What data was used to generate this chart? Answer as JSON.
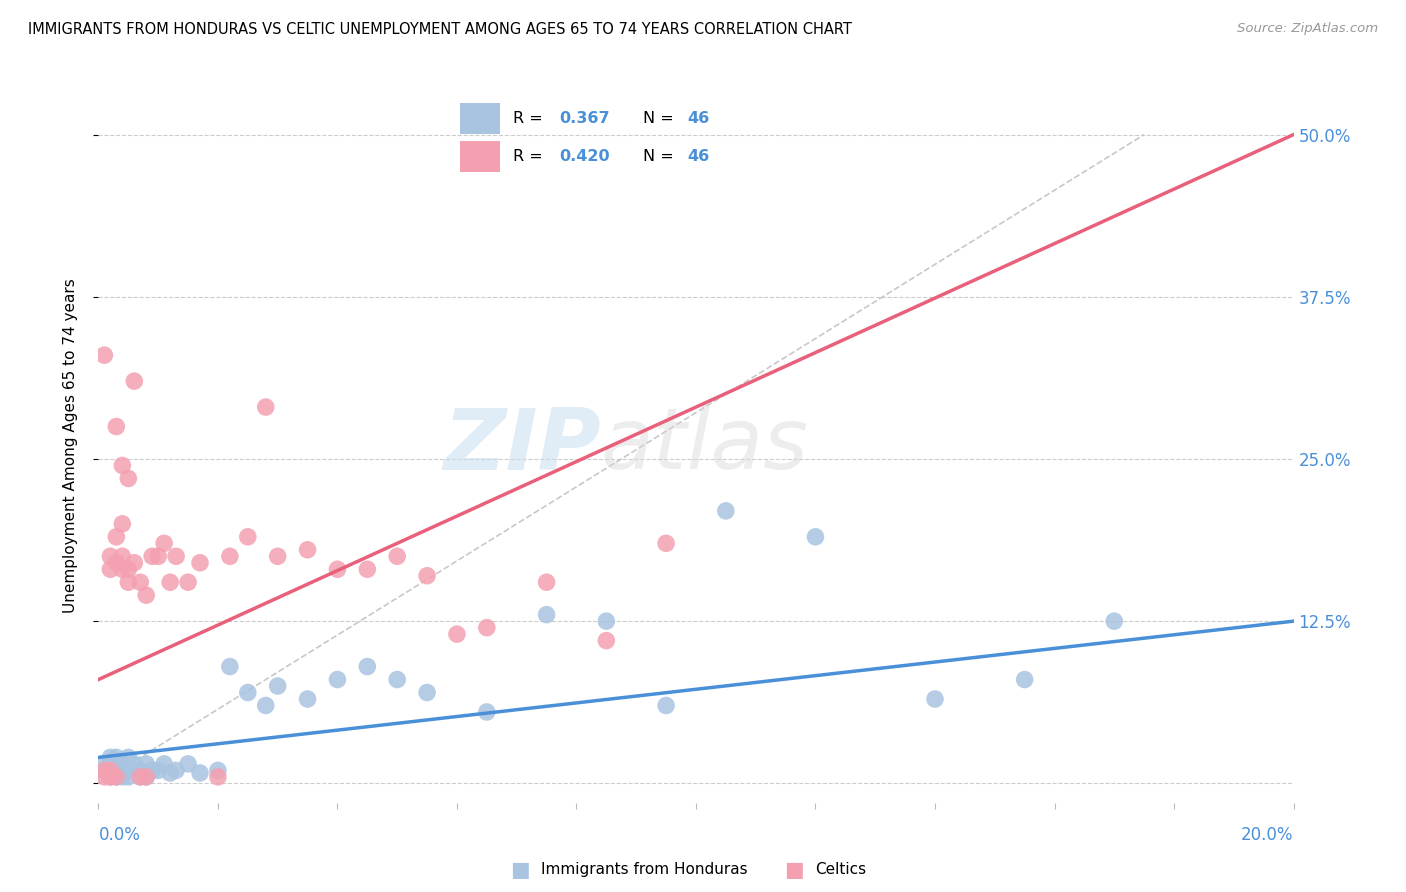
{
  "title": "IMMIGRANTS FROM HONDURAS VS CELTIC UNEMPLOYMENT AMONG AGES 65 TO 74 YEARS CORRELATION CHART",
  "source": "Source: ZipAtlas.com",
  "ylabel": "Unemployment Among Ages 65 to 74 years",
  "xlim": [
    0.0,
    0.2
  ],
  "ylim": [
    -0.015,
    0.535
  ],
  "yticks": [
    0.0,
    0.125,
    0.25,
    0.375,
    0.5
  ],
  "ytick_labels": [
    "",
    "12.5%",
    "25.0%",
    "37.5%",
    "50.0%"
  ],
  "blue_color": "#a8c4e0",
  "pink_color": "#f4a0b0",
  "blue_line_color": "#4a90d9",
  "pink_line_color": "#e8607a",
  "watermark_zip": "ZIP",
  "watermark_atlas": "atlas",
  "blue_scatter_x": [
    0.001,
    0.001,
    0.002,
    0.002,
    0.002,
    0.003,
    0.003,
    0.003,
    0.004,
    0.004,
    0.004,
    0.005,
    0.005,
    0.005,
    0.006,
    0.006,
    0.007,
    0.007,
    0.008,
    0.008,
    0.009,
    0.01,
    0.011,
    0.012,
    0.013,
    0.015,
    0.017,
    0.02,
    0.022,
    0.025,
    0.028,
    0.03,
    0.035,
    0.04,
    0.045,
    0.05,
    0.055,
    0.065,
    0.075,
    0.085,
    0.095,
    0.105,
    0.12,
    0.14,
    0.155,
    0.17
  ],
  "blue_scatter_y": [
    0.01,
    0.015,
    0.005,
    0.01,
    0.02,
    0.005,
    0.01,
    0.02,
    0.005,
    0.01,
    0.015,
    0.005,
    0.01,
    0.02,
    0.01,
    0.015,
    0.005,
    0.01,
    0.005,
    0.015,
    0.01,
    0.01,
    0.015,
    0.008,
    0.01,
    0.015,
    0.008,
    0.01,
    0.09,
    0.07,
    0.06,
    0.075,
    0.065,
    0.08,
    0.09,
    0.08,
    0.07,
    0.055,
    0.13,
    0.125,
    0.06,
    0.21,
    0.19,
    0.065,
    0.08,
    0.125
  ],
  "pink_scatter_x": [
    0.001,
    0.001,
    0.001,
    0.002,
    0.002,
    0.002,
    0.002,
    0.003,
    0.003,
    0.003,
    0.003,
    0.004,
    0.004,
    0.004,
    0.004,
    0.005,
    0.005,
    0.005,
    0.006,
    0.006,
    0.007,
    0.007,
    0.008,
    0.008,
    0.009,
    0.01,
    0.011,
    0.012,
    0.013,
    0.015,
    0.017,
    0.02,
    0.022,
    0.025,
    0.028,
    0.03,
    0.035,
    0.04,
    0.045,
    0.05,
    0.055,
    0.06,
    0.065,
    0.075,
    0.085,
    0.095
  ],
  "pink_scatter_y": [
    0.005,
    0.01,
    0.33,
    0.005,
    0.01,
    0.165,
    0.175,
    0.005,
    0.17,
    0.19,
    0.275,
    0.165,
    0.175,
    0.2,
    0.245,
    0.155,
    0.165,
    0.235,
    0.17,
    0.31,
    0.005,
    0.155,
    0.005,
    0.145,
    0.175,
    0.175,
    0.185,
    0.155,
    0.175,
    0.155,
    0.17,
    0.005,
    0.175,
    0.19,
    0.29,
    0.175,
    0.18,
    0.165,
    0.165,
    0.175,
    0.16,
    0.115,
    0.12,
    0.155,
    0.11,
    0.185
  ],
  "blue_trend_x": [
    0.0,
    0.2
  ],
  "blue_trend_y": [
    0.02,
    0.125
  ],
  "pink_trend_x": [
    0.0,
    0.2
  ],
  "pink_trend_y": [
    0.08,
    0.5
  ],
  "ref_line_x": [
    0.0,
    0.175
  ],
  "ref_line_y": [
    0.0,
    0.5
  ]
}
